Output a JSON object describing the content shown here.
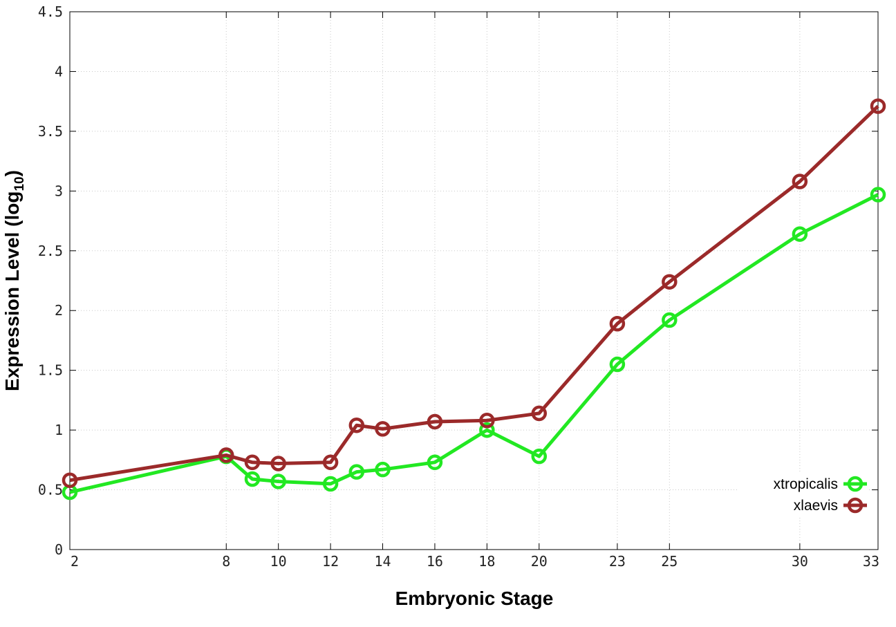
{
  "chart_data": {
    "type": "line",
    "xlabel": "Embryonic Stage",
    "ylabel_main": "Expression Level (log",
    "ylabel_sub": "10",
    "ylabel_close": ")",
    "x": [
      2,
      8,
      9,
      10,
      12,
      13,
      14,
      16,
      18,
      20,
      23,
      25,
      30,
      33
    ],
    "xticks": [
      "2",
      "8",
      "10",
      "12",
      "14",
      "16",
      "18",
      "20",
      "23",
      "25",
      "30",
      "33"
    ],
    "xlim": [
      2,
      33
    ],
    "ylim": [
      0,
      4.5
    ],
    "yticks": [
      "0",
      "0.5",
      "1",
      "1.5",
      "2",
      "2.5",
      "3",
      "3.5",
      "4",
      "4.5"
    ],
    "grid": true,
    "legend_position": "bottom-right",
    "series": [
      {
        "name": "xtropicalis",
        "color": "#22e822",
        "values": [
          0.48,
          0.78,
          0.59,
          0.57,
          0.55,
          0.65,
          0.67,
          0.73,
          1.0,
          0.78,
          1.55,
          1.92,
          2.64,
          2.97
        ]
      },
      {
        "name": "xlaevis",
        "color": "#9b2a2a",
        "values": [
          0.58,
          0.79,
          0.73,
          0.72,
          0.73,
          1.04,
          1.01,
          1.07,
          1.08,
          1.14,
          1.89,
          2.24,
          3.08,
          3.71
        ]
      }
    ]
  }
}
